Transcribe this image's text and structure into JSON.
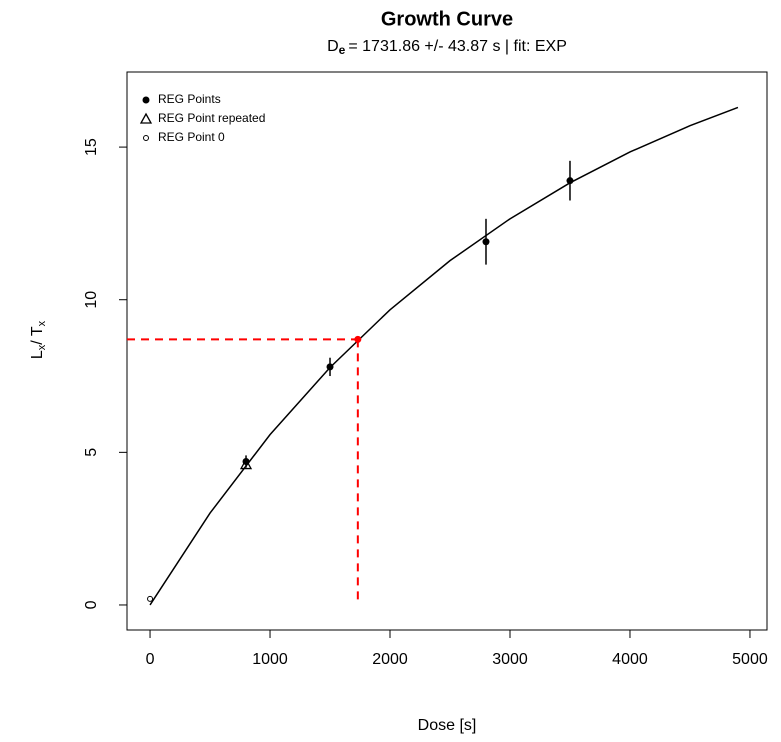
{
  "chart_data": {
    "type": "scatter",
    "title": "Growth Curve",
    "subtitle": {
      "d": "D",
      "sub": "e",
      "rest": "= 1731.86 +/- 43.87 s  | fit:  EXP"
    },
    "x_label": "Dose [s]",
    "y_label": {
      "l": "L",
      "lsub": "x",
      "t": "/ T",
      "tsub": "x"
    },
    "xlim": [
      -192,
      5142
    ],
    "ylim": [
      -0.82,
      17.46
    ],
    "xticks": [
      0,
      1000,
      2000,
      3000,
      4000,
      5000
    ],
    "yticks": [
      0,
      5,
      10,
      15
    ],
    "series": [
      {
        "name": "REG Points",
        "marker": "dot",
        "color": "#000000",
        "x": [
          800,
          1500,
          2800,
          3500
        ],
        "values": [
          4.7,
          7.8,
          11.9,
          13.9
        ],
        "errors": [
          0.2,
          0.3,
          0.75,
          0.65
        ]
      },
      {
        "name": "REG Point repeated",
        "marker": "triangle",
        "color": "#000000",
        "x": [
          800
        ],
        "values": [
          4.6
        ]
      },
      {
        "name": "REG Point 0",
        "marker": "circle",
        "color": "#000000",
        "x": [
          0
        ],
        "values": [
          0.2
        ]
      }
    ],
    "fit_curve": {
      "color": "#000000",
      "x": [
        0,
        500,
        1000,
        1500,
        2000,
        2500,
        3000,
        3500,
        4000,
        4500,
        4900
      ],
      "values": [
        0,
        3.01,
        5.58,
        7.78,
        9.67,
        11.28,
        12.65,
        13.83,
        14.84,
        15.7,
        16.3
      ]
    },
    "de_point": {
      "x": 1731.86,
      "value": 8.7,
      "color": "#ff0000"
    }
  }
}
